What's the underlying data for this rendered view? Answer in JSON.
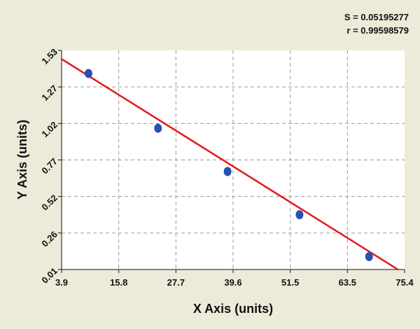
{
  "chart_data": {
    "type": "scatter",
    "xlabel": "X Axis (units)",
    "ylabel": "Y Axis (units)",
    "x_ticks": [
      "3.9",
      "15.8",
      "27.7",
      "39.6",
      "51.5",
      "63.5",
      "75.4"
    ],
    "y_ticks": [
      "0.01",
      "0.26",
      "0.52",
      "0.77",
      "1.02",
      "1.27",
      "1.53"
    ],
    "xlim": [
      3.9,
      75.4
    ],
    "ylim": [
      0.01,
      1.53
    ],
    "grid": true,
    "stats": {
      "s_text": "S = 0.05195277",
      "r_text": "r = 0.99598579"
    },
    "series": [
      {
        "marker_color": "#2b4fb3",
        "points": [
          {
            "x": 9.5,
            "y": 1.37
          },
          {
            "x": 24.0,
            "y": 0.99
          },
          {
            "x": 38.5,
            "y": 0.69
          },
          {
            "x": 53.5,
            "y": 0.39
          },
          {
            "x": 68.0,
            "y": 0.1
          }
        ]
      }
    ],
    "fit_line": {
      "color": "#e01b1b",
      "x": [
        3.9,
        74.0
      ],
      "y": [
        1.47,
        0.01
      ]
    },
    "colors": {
      "background": "#ecebd9",
      "plot_area": "#ffffff",
      "grid": "#9a9a9a",
      "text": "#111111"
    }
  }
}
